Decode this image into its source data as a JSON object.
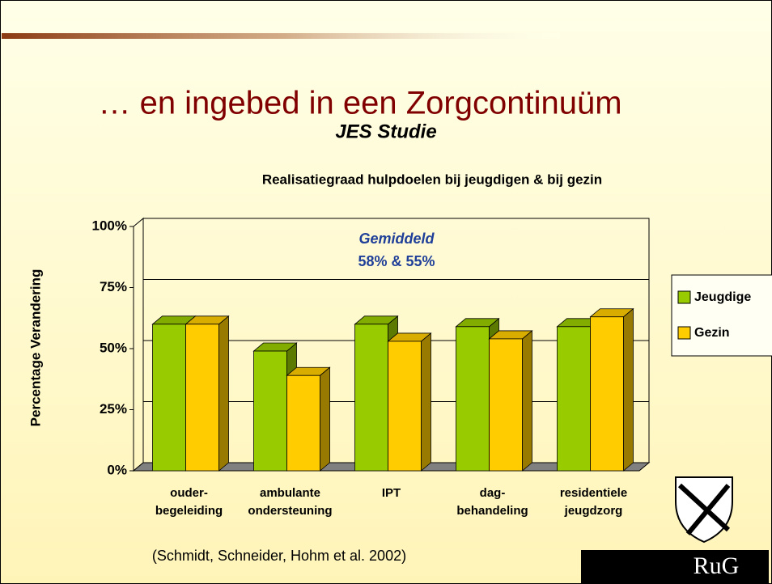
{
  "title": "… en ingebed in een Zorgcontinuüm",
  "subtitle": "JES Studie",
  "citation": "(Schmidt, Schneider, Hohm et al. 2002)",
  "logo_text": "RuG",
  "chart_data": {
    "type": "bar",
    "title": "Realisatiegraad hulpdoelen bij jeugdigen & bij gezin",
    "y_label": "Percentage Verandering",
    "annotations": [
      "Gemiddeld",
      "58% & 55%"
    ],
    "categories": [
      "ouder-\nbegeleiding",
      "ambulante\nondersteuning",
      "IPT",
      "dag-\nbehandeling",
      "residentiele\njeugdzorg"
    ],
    "series": [
      {
        "name": "Jeugdige",
        "color": "#99cc00",
        "values": [
          60,
          49,
          60,
          59,
          59
        ]
      },
      {
        "name": "Gezin",
        "color": "#ffcc00",
        "values": [
          60,
          39,
          53,
          54,
          63
        ]
      }
    ],
    "ylim": [
      0,
      100
    ],
    "yticks": [
      {
        "value": 0,
        "label": "0%"
      },
      {
        "value": 25,
        "label": "25%"
      },
      {
        "value": 50,
        "label": "50%"
      },
      {
        "value": 75,
        "label": "75%"
      },
      {
        "value": 100,
        "label": "100%"
      }
    ],
    "grid": true,
    "legend": "right"
  }
}
